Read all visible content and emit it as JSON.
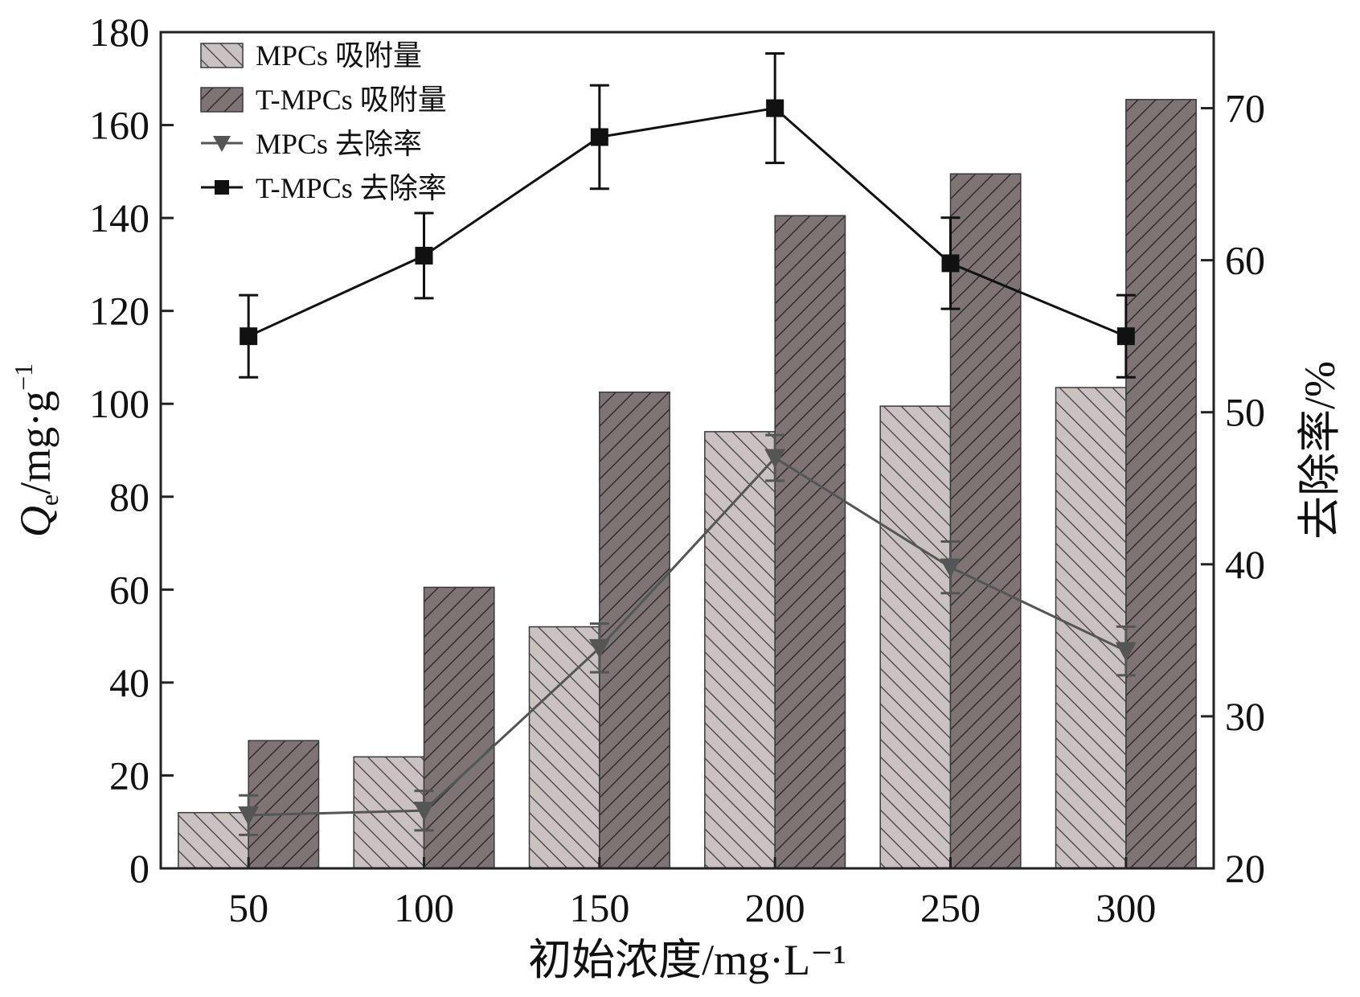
{
  "chart_data": {
    "type": "bar",
    "categories": [
      "50",
      "100",
      "150",
      "200",
      "250",
      "300"
    ],
    "xlabel": "初始浓度/mg·L⁻¹",
    "ylabel": "Qe/mg·g⁻¹",
    "ylabel_parts": {
      "main": "Q",
      "sub": "e",
      "unit": "/mg·g",
      "sup": "−1"
    },
    "y2label": "去除率/%",
    "ylim": [
      0,
      180
    ],
    "y2lim": [
      20,
      75
    ],
    "yticks": [
      0,
      20,
      40,
      60,
      80,
      100,
      120,
      140,
      160,
      180
    ],
    "y2ticks": [
      20,
      30,
      40,
      50,
      60,
      70
    ],
    "legend_position": "top-left",
    "bar_series": [
      {
        "name": "MPCs 吸附量",
        "values": [
          12,
          24,
          52,
          94,
          99.5,
          103.5
        ],
        "color": "#c9c2c1",
        "hatch": "back"
      },
      {
        "name": "T-MPCs 吸附量",
        "values": [
          27.5,
          60.5,
          102.5,
          140.5,
          149.5,
          165.5
        ],
        "color": "#7d7473",
        "hatch": "forward"
      }
    ],
    "line_series": [
      {
        "name": "MPCs 去除率",
        "axis": "right",
        "marker": "triangle-down",
        "color": "#555555",
        "values": [
          23.5,
          23.8,
          34.5,
          47.0,
          39.8,
          34.3
        ],
        "errors": [
          1.3,
          1.3,
          1.6,
          1.5,
          1.7,
          1.6
        ]
      },
      {
        "name": "T-MPCs 去除率",
        "axis": "right",
        "marker": "square",
        "color": "#111111",
        "values": [
          55.0,
          60.3,
          68.1,
          70.0,
          59.8,
          55.0
        ],
        "errors": [
          2.7,
          2.8,
          3.4,
          3.6,
          3.0,
          2.7
        ]
      }
    ]
  }
}
